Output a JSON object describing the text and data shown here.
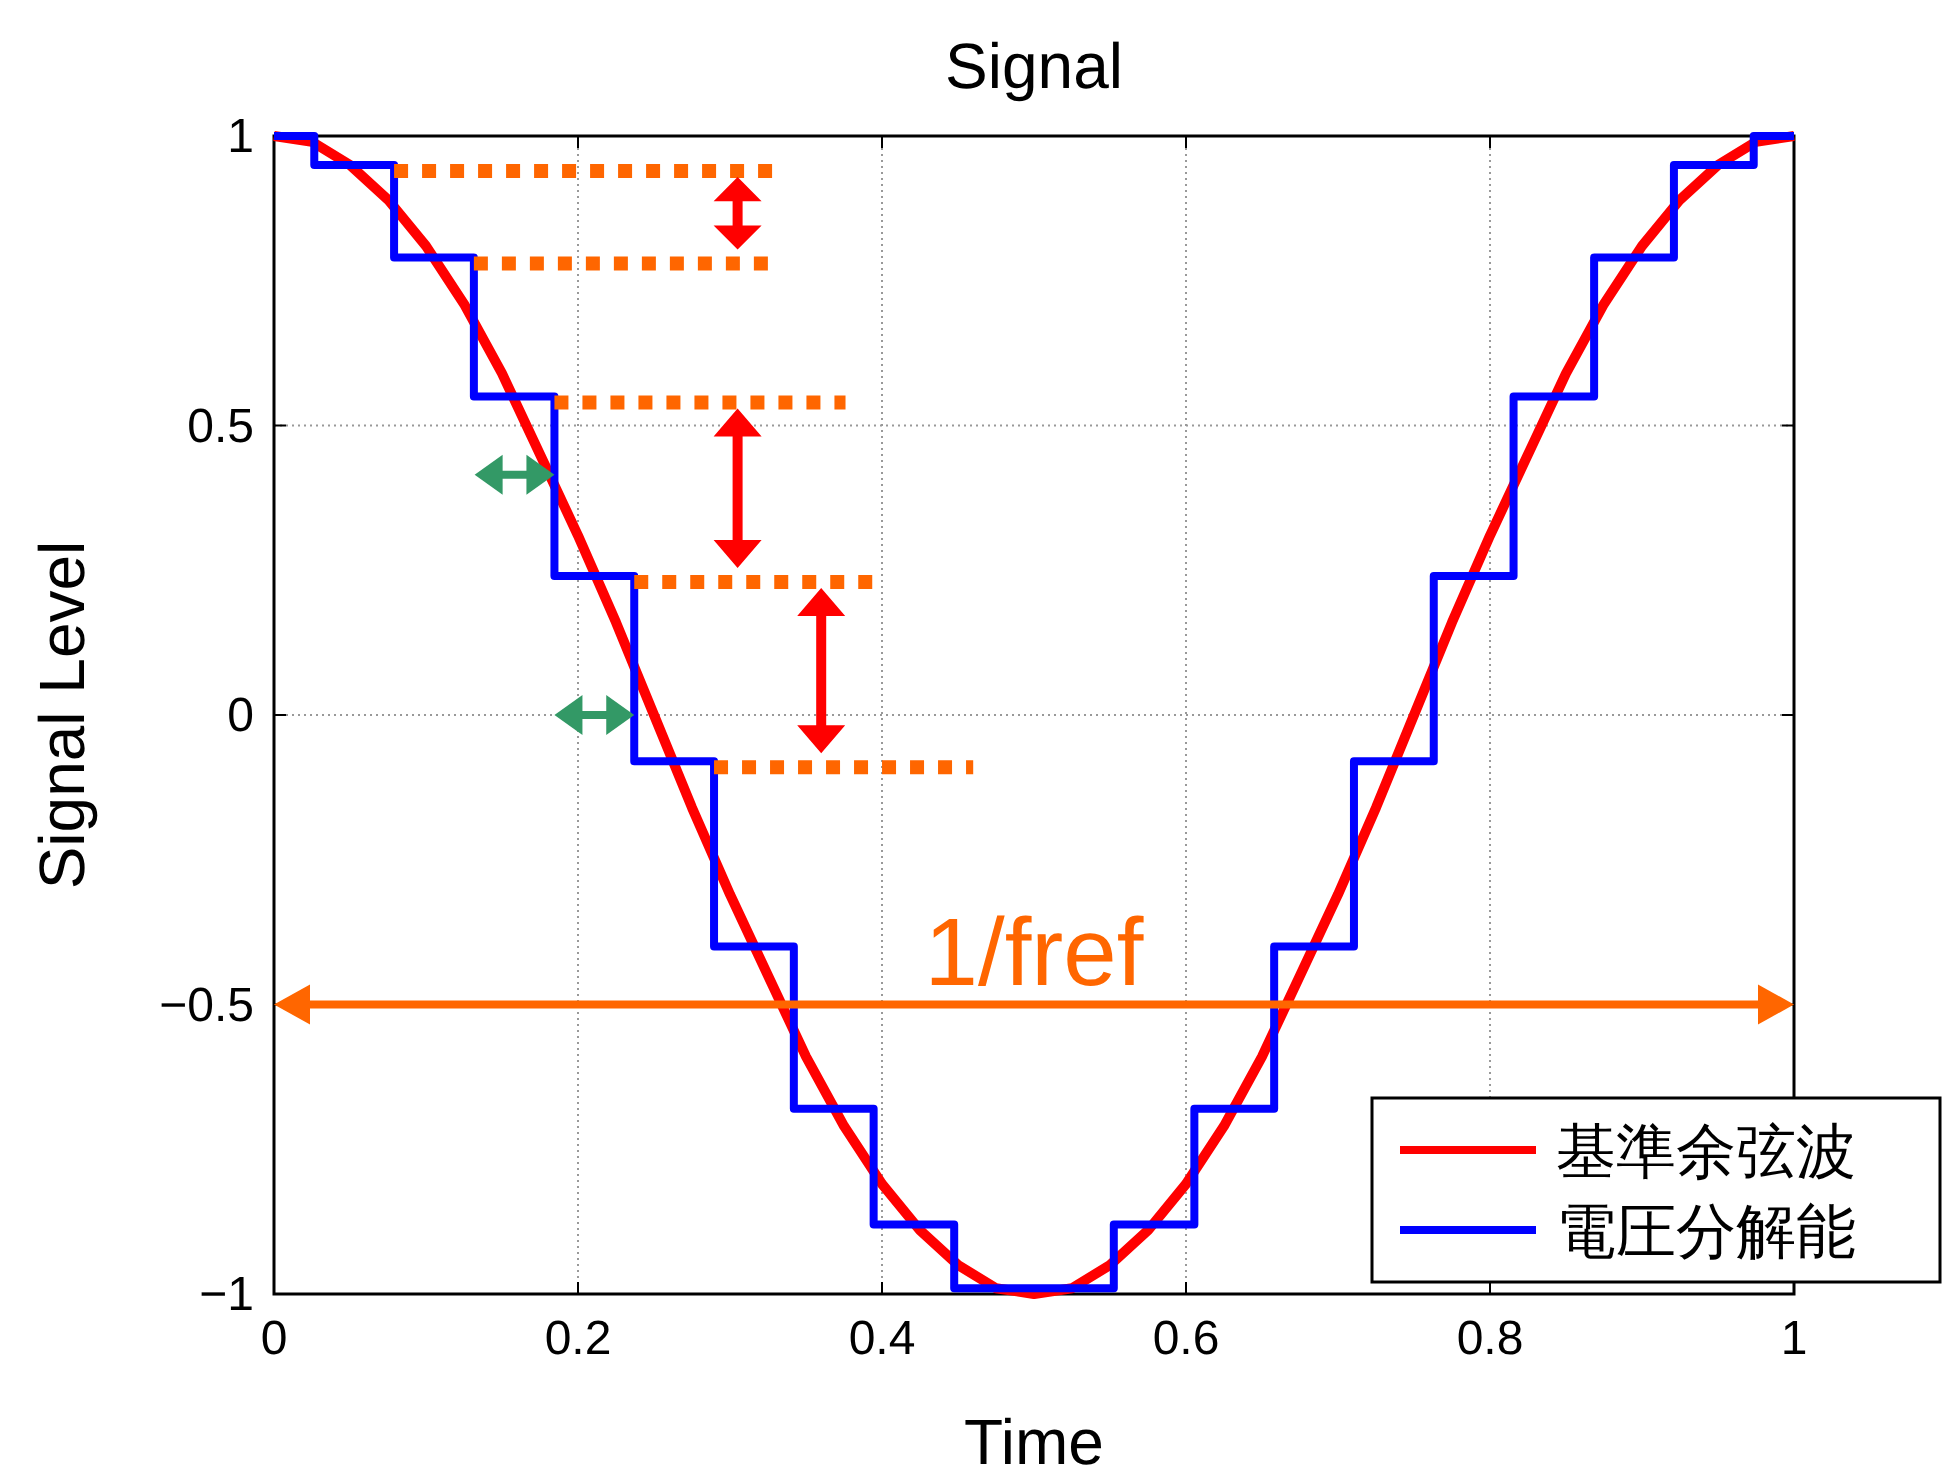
{
  "chart_data": {
    "type": "line",
    "title": "Signal",
    "xlabel": "Time",
    "ylabel": "Signal Level",
    "xlim": [
      0,
      1
    ],
    "ylim": [
      -1,
      1
    ],
    "xticks": [
      0,
      0.2,
      0.4,
      0.6,
      0.8,
      1
    ],
    "yticks": [
      {
        "value": -1,
        "label": "−1"
      },
      {
        "value": -0.5,
        "label": "−0.5"
      },
      0,
      0.5,
      1
    ],
    "grid": true,
    "legend": "bottom right",
    "series": [
      {
        "name": "基準余弦波",
        "color": "#ff0000",
        "x": [
          0,
          0.025,
          0.05,
          0.075,
          0.1,
          0.125,
          0.15,
          0.175,
          0.2,
          0.225,
          0.25,
          0.275,
          0.3,
          0.325,
          0.35,
          0.375,
          0.4,
          0.425,
          0.45,
          0.475,
          0.5,
          0.525,
          0.55,
          0.575,
          0.6,
          0.625,
          0.65,
          0.675,
          0.7,
          0.725,
          0.75,
          0.775,
          0.8,
          0.825,
          0.85,
          0.875,
          0.9,
          0.925,
          0.95,
          0.975,
          1
        ],
        "values": [
          1,
          0.99,
          0.95,
          0.89,
          0.81,
          0.71,
          0.59,
          0.45,
          0.31,
          0.16,
          0,
          -0.16,
          -0.31,
          -0.45,
          -0.59,
          -0.71,
          -0.81,
          -0.89,
          -0.95,
          -0.99,
          -1,
          -0.99,
          -0.95,
          -0.89,
          -0.81,
          -0.71,
          -0.59,
          -0.45,
          -0.31,
          -0.16,
          0,
          0.16,
          0.31,
          0.45,
          0.59,
          0.71,
          0.81,
          0.89,
          0.95,
          0.99,
          1
        ]
      },
      {
        "name": "電圧分解能",
        "color": "#0000ff",
        "type": "step",
        "x": [
          0,
          0.053,
          0.105,
          0.158,
          0.211,
          0.263,
          0.316,
          0.368,
          0.421,
          0.474,
          0.526,
          0.579,
          0.632,
          0.684,
          0.737,
          0.789,
          0.842,
          0.895,
          0.947,
          1
        ],
        "values": [
          1,
          0.95,
          0.79,
          0.55,
          0.24,
          -0.08,
          -0.4,
          -0.68,
          -0.88,
          -0.99,
          -0.99,
          -0.88,
          -0.68,
          -0.4,
          -0.08,
          0.24,
          0.55,
          0.79,
          0.95,
          1
        ]
      }
    ],
    "ref_lines": [
      {
        "axis": "y",
        "value": -0.5,
        "label": "1/fref",
        "color": "#ff6600"
      }
    ]
  }
}
